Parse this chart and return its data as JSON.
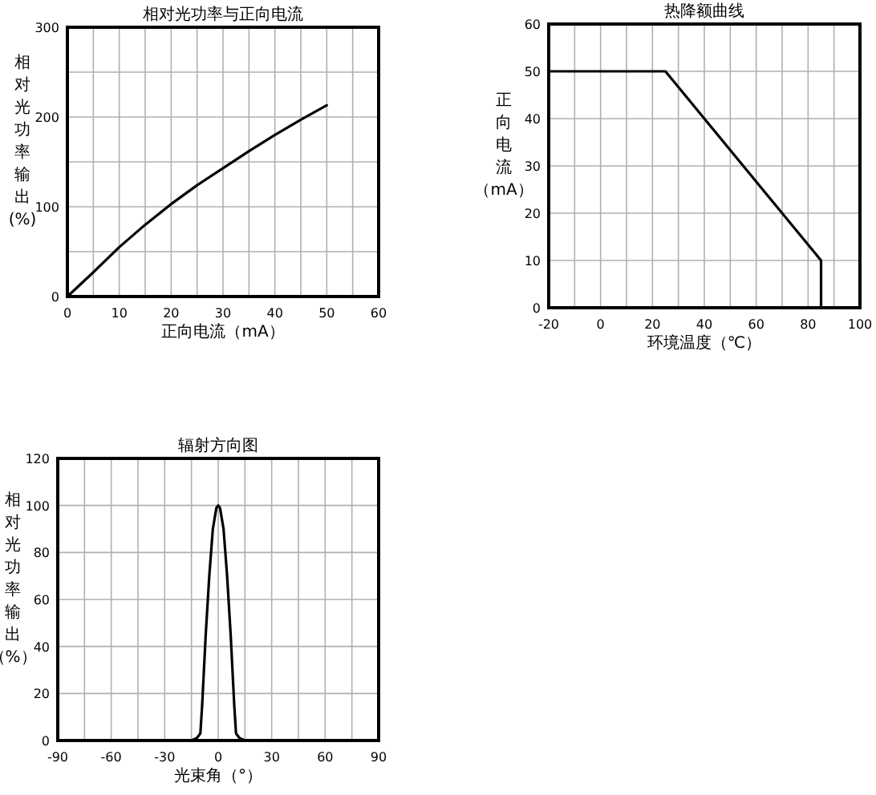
{
  "chart_data": [
    {
      "type": "line",
      "title": "相对光功率与正向电流",
      "xlabel": "正向电流（mA）",
      "ylabel": "相对光功率输出(%)",
      "grid": true,
      "line_style": "solid",
      "xlim": [
        0,
        60
      ],
      "ylim": [
        0,
        300
      ],
      "xticks": [
        0,
        {
          "value": 5,
          "label": null
        },
        10,
        {
          "value": 15,
          "label": null
        },
        20,
        {
          "value": 25,
          "label": null
        },
        30,
        {
          "value": 35,
          "label": null
        },
        40,
        {
          "value": 45,
          "label": null
        },
        50,
        {
          "value": 55,
          "label": null
        },
        60
      ],
      "yticks": [
        0,
        {
          "value": 50,
          "label": null
        },
        100,
        {
          "value": 150,
          "label": null
        },
        200,
        {
          "value": 250,
          "label": null
        },
        300
      ],
      "x": [
        0,
        5,
        10,
        15,
        20,
        25,
        30,
        35,
        40,
        45,
        50
      ],
      "series": [
        {
          "color": "#000000",
          "values": [
            0,
            27,
            55,
            80,
            103,
            124,
            143,
            162,
            180,
            197,
            213
          ]
        }
      ]
    },
    {
      "type": "line",
      "title": "热降额曲线",
      "xlabel": "环境温度（℃）",
      "ylabel": "正向电流（mA）",
      "grid": true,
      "line_style": "solid",
      "xlim": [
        -20,
        100
      ],
      "ylim": [
        0,
        60
      ],
      "xticks": [
        -20,
        {
          "value": -10,
          "label": null
        },
        0,
        {
          "value": 10,
          "label": null
        },
        20,
        {
          "value": 30,
          "label": null
        },
        40,
        {
          "value": 50,
          "label": null
        },
        60,
        {
          "value": 70,
          "label": null
        },
        80,
        {
          "value": 90,
          "label": null
        },
        100
      ],
      "yticks": [
        0,
        10,
        20,
        30,
        40,
        50,
        60
      ],
      "x": [
        -20,
        25,
        85,
        85
      ],
      "series": [
        {
          "color": "#000000",
          "values": [
            50,
            50,
            10,
            0
          ]
        }
      ]
    },
    {
      "type": "line",
      "title": "辐射方向图",
      "xlabel": "光束角（°）",
      "ylabel": "相对光功率输出（%）",
      "grid": true,
      "line_style": "solid",
      "xlim": [
        -90,
        90
      ],
      "ylim": [
        0,
        120
      ],
      "xticks": [
        -90,
        {
          "value": -75,
          "label": null
        },
        -60,
        {
          "value": -45,
          "label": null
        },
        -30,
        {
          "value": -15,
          "label": null
        },
        0,
        {
          "value": 15,
          "label": null
        },
        30,
        {
          "value": 45,
          "label": null
        },
        60,
        {
          "value": 75,
          "label": null
        },
        90
      ],
      "yticks": [
        0,
        20,
        40,
        60,
        80,
        100,
        120
      ],
      "x": [
        -90,
        -15,
        -12,
        -10,
        -9,
        -7,
        -5,
        -3,
        -1,
        0,
        1,
        3,
        5,
        7,
        9,
        10,
        12,
        15,
        90
      ],
      "series": [
        {
          "color": "#000000",
          "values": [
            0,
            0,
            1,
            3,
            15,
            45,
            70,
            90,
            99,
            100,
            99,
            90,
            70,
            45,
            15,
            3,
            1,
            0,
            0
          ]
        }
      ]
    }
  ]
}
